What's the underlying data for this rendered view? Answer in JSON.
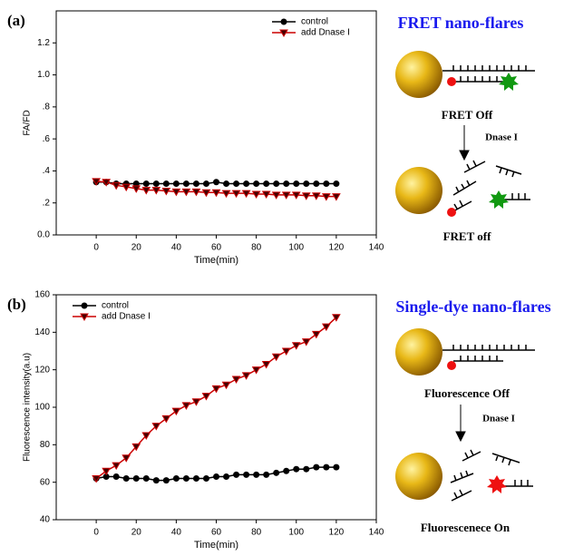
{
  "chart_data": [
    {
      "type": "line",
      "panel_label": "(a)",
      "x_label": "Time(min)",
      "y_label": "FA/FD",
      "x": [
        0,
        5,
        10,
        15,
        20,
        25,
        30,
        35,
        40,
        45,
        50,
        55,
        60,
        65,
        70,
        75,
        80,
        85,
        90,
        95,
        100,
        105,
        110,
        115,
        120
      ],
      "series": [
        {
          "name": "control",
          "color": "#000000",
          "marker": "circle",
          "values": [
            0.33,
            0.33,
            0.32,
            0.32,
            0.32,
            0.32,
            0.32,
            0.32,
            0.32,
            0.32,
            0.32,
            0.32,
            0.33,
            0.32,
            0.32,
            0.32,
            0.32,
            0.32,
            0.32,
            0.32,
            0.32,
            0.32,
            0.32,
            0.32,
            0.32
          ]
        },
        {
          "name": "add Dnase I",
          "color": "#cc0000",
          "marker": "triangle-down",
          "values": [
            0.335,
            0.33,
            0.31,
            0.3,
            0.29,
            0.28,
            0.28,
            0.275,
            0.27,
            0.27,
            0.27,
            0.265,
            0.265,
            0.26,
            0.26,
            0.26,
            0.255,
            0.255,
            0.25,
            0.25,
            0.25,
            0.245,
            0.245,
            0.24,
            0.24
          ]
        }
      ],
      "xlim": [
        -20,
        140
      ],
      "xticks": [
        0,
        20,
        40,
        60,
        80,
        100,
        120,
        140
      ],
      "ylim": [
        0,
        1.4
      ],
      "yticks": [
        {
          "value": 0,
          "label": "0.0"
        },
        {
          "value": 0.2,
          "label": ".2"
        },
        {
          "value": 0.4,
          "label": ".4"
        },
        {
          "value": 0.6,
          "label": ".6"
        },
        {
          "value": 0.8,
          "label": ".8"
        },
        {
          "value": 1.0,
          "label": "1.0"
        },
        {
          "value": 1.2,
          "label": "1.2"
        }
      ],
      "legend": "upper right"
    },
    {
      "type": "line",
      "panel_label": "(b)",
      "x_label": "Time(min)",
      "y_label": "Fluorescence intensity(a.u)",
      "x": [
        0,
        5,
        10,
        15,
        20,
        25,
        30,
        35,
        40,
        45,
        50,
        55,
        60,
        65,
        70,
        75,
        80,
        85,
        90,
        95,
        100,
        105,
        110,
        115,
        120
      ],
      "series": [
        {
          "name": "control",
          "color": "#000000",
          "marker": "circle",
          "values": [
            62,
            63,
            63,
            62,
            62,
            62,
            61,
            61,
            62,
            62,
            62,
            62,
            63,
            63,
            64,
            64,
            64,
            64,
            65,
            66,
            67,
            67,
            68,
            68,
            68
          ]
        },
        {
          "name": "add Dnase I",
          "color": "#cc0000",
          "marker": "triangle-down",
          "values": [
            62,
            66,
            69,
            73,
            79,
            85,
            90,
            94,
            98,
            101,
            103,
            106,
            110,
            112,
            115,
            117,
            120,
            123,
            127,
            130,
            133,
            135,
            139,
            143,
            148
          ]
        }
      ],
      "xlim": [
        -20,
        140
      ],
      "xticks": [
        0,
        20,
        40,
        60,
        80,
        100,
        120,
        140
      ],
      "ylim": [
        40,
        160
      ],
      "yticks": [
        40,
        60,
        80,
        100,
        120,
        140,
        160
      ],
      "legend": "upper left"
    }
  ],
  "diagrams": [
    {
      "title": "FRET nano-flares",
      "before": "FRET Off",
      "enzyme": "Dnase I",
      "after": "FRET off"
    },
    {
      "title": "Single-dye nano-flares",
      "before": "Fluorescence Off",
      "enzyme": "Dnase I",
      "after": "Fluorescenece On"
    }
  ]
}
